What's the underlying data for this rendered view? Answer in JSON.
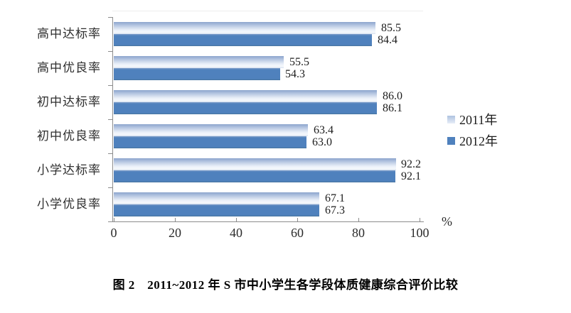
{
  "chart_data": {
    "type": "bar",
    "orientation": "horizontal",
    "categories": [
      "高中达标率",
      "高中优良率",
      "初中达标率",
      "初中优良率",
      "小学达标率",
      "小学优良率"
    ],
    "series": [
      {
        "name": "2011年",
        "color": "#c6d3e8",
        "values": [
          85.5,
          55.5,
          86.0,
          63.4,
          92.2,
          67.1
        ],
        "labels": [
          "85.5",
          "55.5",
          "86.0",
          "63.4",
          "92.2",
          "67.1"
        ]
      },
      {
        "name": "2012年",
        "color": "#4f81bd",
        "values": [
          84.4,
          54.3,
          86.1,
          63.0,
          92.1,
          67.3
        ],
        "labels": [
          "84.4",
          "54.3",
          "86.1",
          "63.0",
          "92.1",
          "67.3"
        ]
      }
    ],
    "xlabel": "%",
    "xlim": [
      0,
      100
    ],
    "xticks": [
      "0",
      "20",
      "40",
      "60",
      "80",
      "100"
    ],
    "grid": false,
    "legend_position": "right-middle",
    "caption": "图 2　2011~2012 年 S 市中小学生各学段体质健康综合评价比较"
  },
  "colors": {
    "series_2011_light": "#c6d3e8",
    "series_2012_blue": "#4f81bd",
    "axis_gray": "#8c8c8c",
    "text_dark": "#1c1c1c"
  }
}
